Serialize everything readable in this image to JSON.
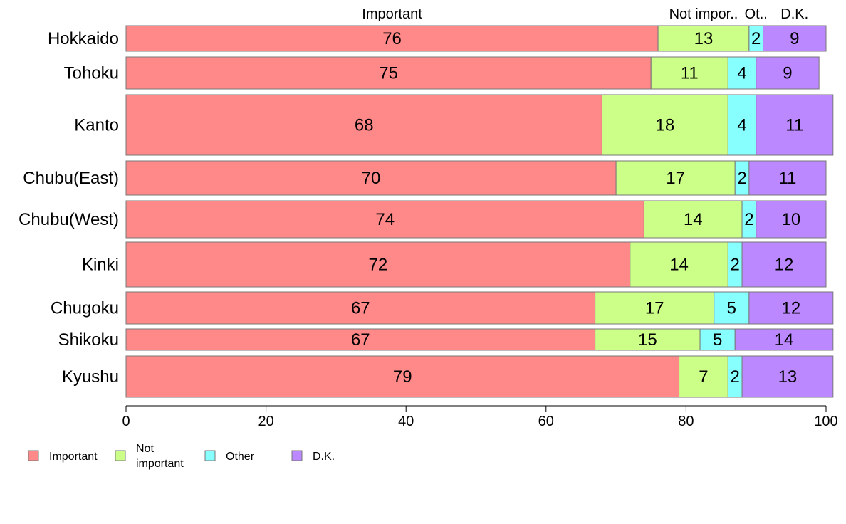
{
  "chart_data": {
    "type": "bar",
    "orientation": "horizontal",
    "stacked": true,
    "categories": [
      "Hokkaido",
      "Tohoku",
      "Kanto",
      "Chubu(East)",
      "Chubu(West)",
      "Kinki",
      "Chugoku",
      "Shikoku",
      "Kyushu"
    ],
    "series": [
      {
        "name": "Important",
        "color": "#FF8888",
        "values": [
          76,
          75,
          68,
          70,
          74,
          72,
          67,
          67,
          79
        ]
      },
      {
        "name": "Not important",
        "color": "#CCFF88",
        "values": [
          13,
          11,
          18,
          17,
          14,
          14,
          17,
          15,
          7
        ]
      },
      {
        "name": "Other",
        "color": "#88FFFF",
        "values": [
          2,
          4,
          4,
          2,
          2,
          2,
          5,
          5,
          2
        ]
      },
      {
        "name": "D.K.",
        "color": "#BB88FF",
        "values": [
          9,
          9,
          11,
          11,
          10,
          12,
          12,
          14,
          13
        ]
      }
    ],
    "column_headers": [
      "Important",
      "Not impor..",
      "Ot..",
      "D.K."
    ],
    "legend_labels": [
      "Important",
      "Not important",
      "Other",
      "D.K."
    ],
    "xlim": [
      0,
      100
    ],
    "xticks": [
      "0",
      "20",
      "40",
      "60",
      "80",
      "100"
    ],
    "legend_position": "bottom-left",
    "grid": false
  }
}
